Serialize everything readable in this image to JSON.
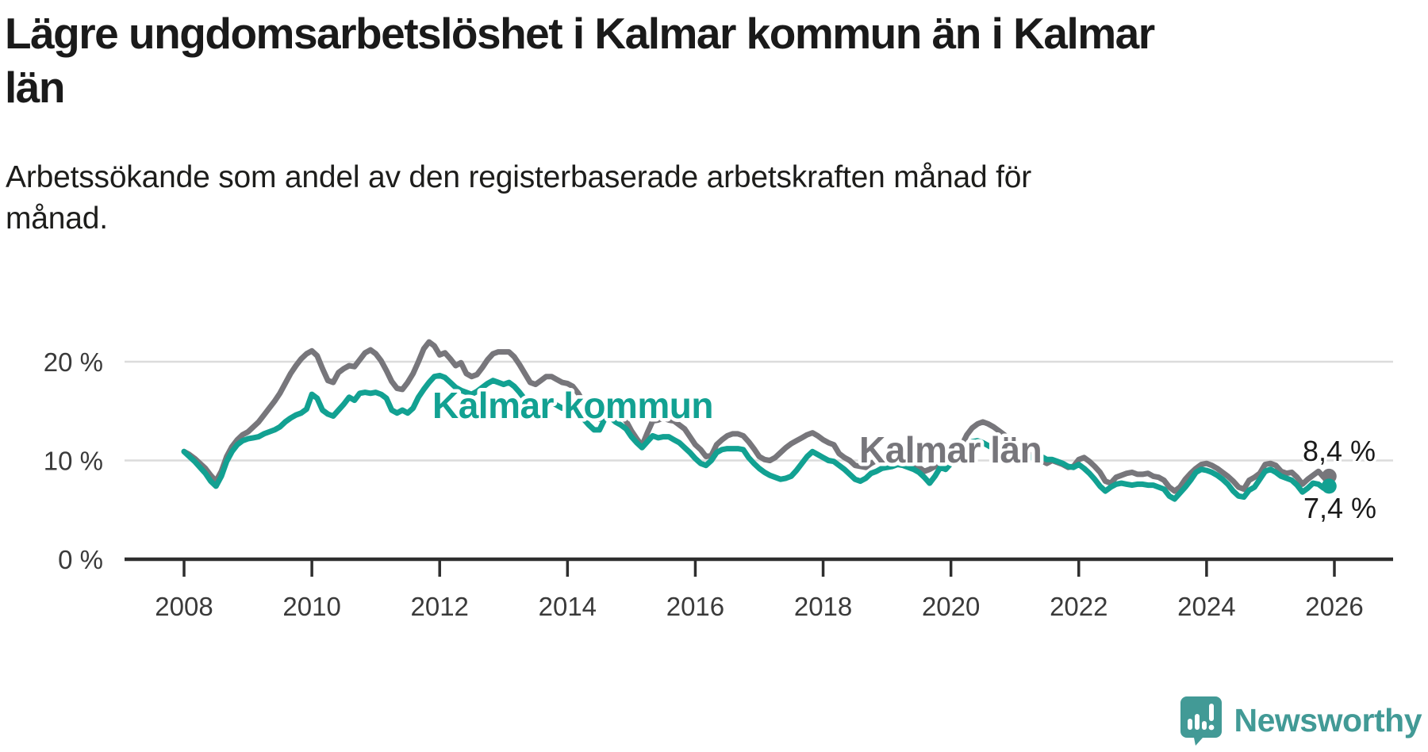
{
  "title": {
    "lines": [
      "Lägre ungdomsarbetslöshet i Kalmar kommun än i Kalmar",
      "län"
    ]
  },
  "subtitle": {
    "lines": [
      "Arbetssökande som andel av den registerbaserade arbetskraften månad för",
      "månad."
    ]
  },
  "branding": {
    "name": "Newsworthy",
    "logo_icon": "bar-chart-speech-bubble"
  },
  "colors": {
    "kommun_teal": "#12a192",
    "lan_gray": "#77767b",
    "grid": "#dcdcdc",
    "axis": "#2e2e2e",
    "axis_text": "#3a3a3a",
    "value_text": "#1a1a1a",
    "brand_teal": "#429a96"
  },
  "chart_data": {
    "type": "line",
    "title": "Lägre ungdomsarbetslöshet i Kalmar kommun än i Kalmar län",
    "subtitle": "Arbetssökande som andel av den registerbaserade arbetskraften månad för månad.",
    "frequency": "monthly",
    "x_start": "2008-01",
    "x_end": "2025-12",
    "x_ticks": [
      2008,
      2010,
      2012,
      2014,
      2016,
      2018,
      2020,
      2022,
      2024,
      2026
    ],
    "y_ticks": [
      {
        "value": 0,
        "label": "0 %"
      },
      {
        "value": 10,
        "label": "10 %"
      },
      {
        "value": 20,
        "label": "20 %"
      }
    ],
    "ylim": [
      0,
      24
    ],
    "grid": "horizontal-only",
    "legend_position": "inline-labels",
    "series": [
      {
        "name": "Kalmar län",
        "color": "#77767b",
        "end_label": "8,4 %",
        "end_value": 8.4,
        "values": [
          10.9,
          10.6,
          10.2,
          9.7,
          9.2,
          8.5,
          7.9,
          8.9,
          10.4,
          11.4,
          12.1,
          12.6,
          12.9,
          13.4,
          13.9,
          14.6,
          15.3,
          16.0,
          16.8,
          17.8,
          18.8,
          19.6,
          20.3,
          20.8,
          21.1,
          20.6,
          19.3,
          18.1,
          17.9,
          18.9,
          19.3,
          19.6,
          19.5,
          20.2,
          20.9,
          21.2,
          20.8,
          20.1,
          19.1,
          18.0,
          17.3,
          17.2,
          17.9,
          18.8,
          20.0,
          21.3,
          22.0,
          21.6,
          20.7,
          20.9,
          20.3,
          19.6,
          19.9,
          18.8,
          18.5,
          18.7,
          19.4,
          20.2,
          20.8,
          21.0,
          21.0,
          21.0,
          20.5,
          19.7,
          18.8,
          17.9,
          17.7,
          18.1,
          18.5,
          18.5,
          18.2,
          17.9,
          17.8,
          17.5,
          16.8,
          15.9,
          15.0,
          14.4,
          14.2,
          14.6,
          15.1,
          14.9,
          14.5,
          14.0,
          13.0,
          12.2,
          11.5,
          12.8,
          14.0,
          14.1,
          14.3,
          14.1,
          14.0,
          13.6,
          13.2,
          12.4,
          11.6,
          11.1,
          10.4,
          10.5,
          11.6,
          12.1,
          12.5,
          12.7,
          12.7,
          12.5,
          11.9,
          11.2,
          10.4,
          10.1,
          10.0,
          10.3,
          10.8,
          11.3,
          11.7,
          12.0,
          12.3,
          12.6,
          12.8,
          12.5,
          12.1,
          11.8,
          11.6,
          10.7,
          10.3,
          10.0,
          9.5,
          9.4,
          9.3,
          9.7,
          10.0,
          10.1,
          10.2,
          10.3,
          10.2,
          10.0,
          9.8,
          9.6,
          9.3,
          8.9,
          9.1,
          9.4,
          9.7,
          9.8,
          10.2,
          10.5,
          11.5,
          12.6,
          13.3,
          13.7,
          13.9,
          13.7,
          13.4,
          13.0,
          12.6,
          12.2,
          11.8,
          11.4,
          11.0,
          10.5,
          10.3,
          10.0,
          9.7,
          10.0,
          9.8,
          9.6,
          9.3,
          9.4,
          10.1,
          10.3,
          9.9,
          9.4,
          8.8,
          7.9,
          7.7,
          8.3,
          8.5,
          8.7,
          8.8,
          8.6,
          8.6,
          8.7,
          8.4,
          8.3,
          8.0,
          7.3,
          6.9,
          7.3,
          8.1,
          8.7,
          9.2,
          9.6,
          9.7,
          9.5,
          9.2,
          8.8,
          8.4,
          7.9,
          7.3,
          7.1,
          8.0,
          8.3,
          8.7,
          9.6,
          9.7,
          9.5,
          8.9,
          8.7,
          8.8,
          8.3,
          7.6,
          8.1,
          8.5,
          8.9,
          8.3,
          8.4
        ]
      },
      {
        "name": "Kalmar kommun",
        "color": "#12a192",
        "end_label": "7,4 %",
        "end_value": 7.4,
        "values": [
          10.9,
          10.4,
          9.9,
          9.3,
          8.7,
          7.9,
          7.4,
          8.4,
          9.9,
          10.9,
          11.6,
          12.0,
          12.2,
          12.3,
          12.4,
          12.7,
          12.9,
          13.1,
          13.4,
          13.9,
          14.3,
          14.6,
          14.8,
          15.2,
          16.7,
          16.3,
          15.1,
          14.7,
          14.5,
          15.1,
          15.7,
          16.4,
          16.1,
          16.8,
          16.9,
          16.8,
          16.9,
          16.7,
          16.3,
          15.1,
          14.8,
          15.1,
          14.8,
          15.3,
          16.4,
          17.2,
          17.9,
          18.5,
          18.6,
          18.4,
          17.9,
          17.4,
          17.1,
          16.9,
          16.7,
          17.0,
          17.4,
          17.8,
          18.1,
          17.9,
          17.7,
          17.9,
          17.5,
          16.9,
          16.2,
          15.8,
          15.5,
          15.9,
          16.2,
          15.9,
          15.6,
          15.3,
          15.2,
          15.4,
          14.9,
          14.2,
          13.6,
          13.1,
          13.1,
          14.2,
          14.4,
          13.9,
          13.6,
          13.2,
          12.4,
          11.8,
          11.3,
          11.9,
          12.5,
          12.3,
          12.4,
          12.4,
          12.1,
          11.8,
          11.3,
          10.8,
          10.2,
          9.7,
          9.5,
          10.0,
          10.8,
          11.1,
          11.2,
          11.2,
          11.2,
          11.1,
          10.3,
          9.7,
          9.2,
          8.8,
          8.5,
          8.3,
          8.1,
          8.2,
          8.4,
          9.0,
          9.7,
          10.4,
          10.9,
          10.6,
          10.3,
          10.0,
          9.9,
          9.5,
          9.1,
          8.6,
          8.1,
          7.9,
          8.2,
          8.7,
          8.9,
          9.2,
          9.3,
          9.4,
          9.6,
          9.5,
          9.3,
          9.1,
          8.8,
          8.3,
          7.7,
          8.4,
          9.3,
          9.1,
          9.7,
          10.0,
          10.8,
          11.5,
          11.9,
          12.0,
          11.8,
          11.5,
          11.2,
          11.0,
          10.8,
          10.6,
          10.5,
          10.3,
          10.2,
          10.3,
          10.5,
          10.4,
          10.1,
          10.1,
          9.9,
          9.7,
          9.4,
          9.3,
          9.6,
          9.2,
          8.7,
          8.1,
          7.4,
          6.9,
          7.3,
          7.6,
          7.7,
          7.6,
          7.5,
          7.6,
          7.6,
          7.5,
          7.5,
          7.3,
          7.1,
          6.4,
          6.1,
          6.7,
          7.3,
          8.0,
          8.8,
          9.1,
          9.0,
          8.8,
          8.5,
          8.1,
          7.6,
          6.9,
          6.4,
          6.3,
          7.0,
          7.3,
          8.1,
          8.9,
          9.1,
          8.8,
          8.4,
          8.2,
          8.0,
          7.5,
          6.8,
          7.2,
          7.7,
          7.6,
          7.2,
          7.4
        ]
      }
    ]
  }
}
